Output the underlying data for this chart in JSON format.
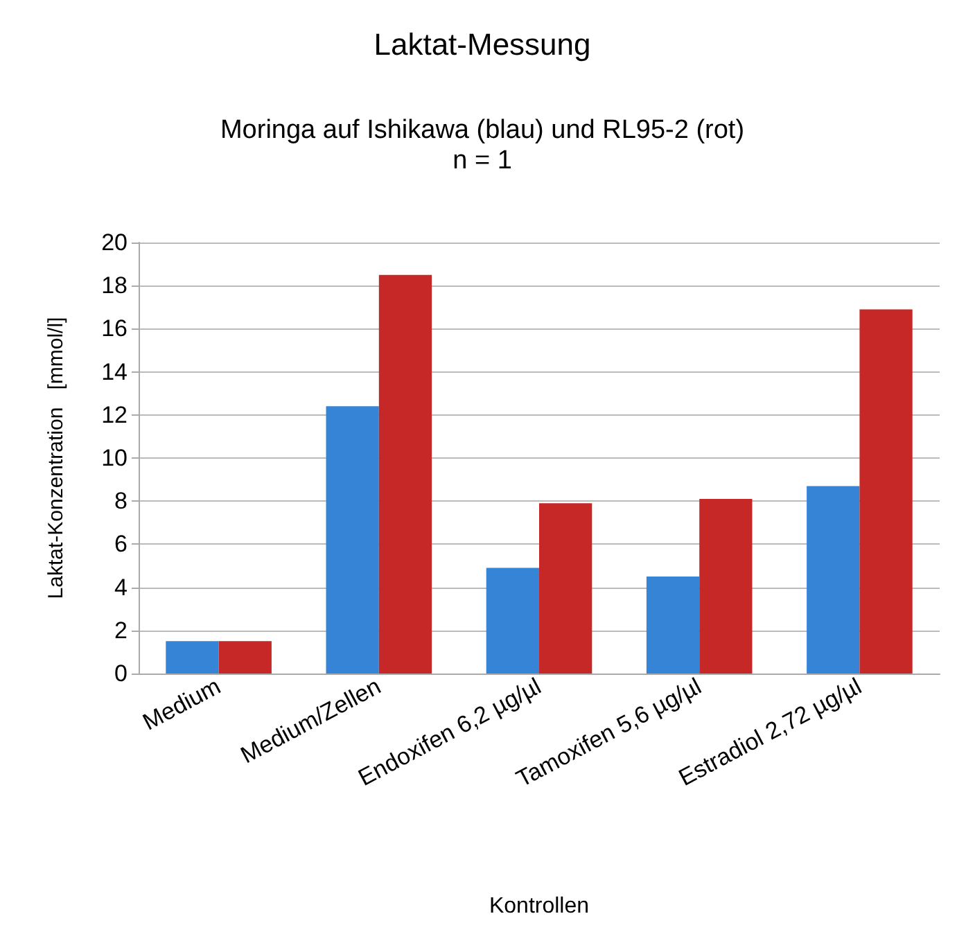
{
  "chart_data": {
    "type": "bar",
    "title": "Laktat-Messung",
    "subtitle": "Moringa auf Ishikawa (blau) und RL95-2 (rot)\nn = 1",
    "xlabel": "Kontrollen",
    "ylabel": "Laktat-Konzentration   [mmol/l]",
    "categories": [
      "Medium",
      "Medium/Zellen",
      "Endoxifen 6,2 µg/µl",
      "Tamoxifen 5,6 µg/µl",
      "Estradiol 2,72 µg/µl"
    ],
    "series": [
      {
        "color": "#3584d6",
        "values": [
          1.5,
          12.4,
          4.9,
          4.5,
          8.7
        ]
      },
      {
        "color": "#c62828",
        "values": [
          1.5,
          18.5,
          7.9,
          8.1,
          16.9
        ]
      }
    ],
    "ylim": [
      0,
      20
    ],
    "yticks": [
      0,
      2,
      4,
      6,
      8,
      10,
      12,
      14,
      16,
      18,
      20
    ],
    "grid": "y"
  }
}
